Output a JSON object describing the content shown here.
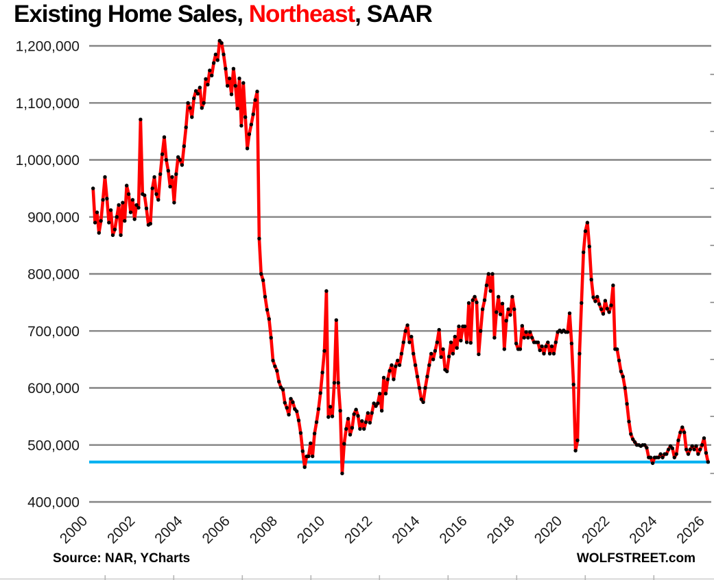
{
  "title": {
    "prefix": "Existing Home Sales, ",
    "highlight": "Northeast",
    "suffix": ", SAAR"
  },
  "footer": {
    "source": "Source: NAR, YCharts",
    "brand": "WOLFSTREET.com"
  },
  "colors": {
    "series_line": "#ff0000",
    "marker": "#000000",
    "reference_line": "#00b0f0",
    "gridline": "#848484",
    "title_highlight": "#ff0000",
    "background": "#ffffff"
  },
  "chart_data": {
    "type": "line",
    "title": "Existing Home Sales, Northeast, SAAR",
    "region": "Northeast",
    "units": "homes, seasonally adjusted annual rate",
    "frequency": "monthly",
    "start": "2000-01",
    "end": "2025-12",
    "grid": "horizontal",
    "legend": "none",
    "ylim": [
      400000,
      1200000
    ],
    "y_tick_values": [
      1200000,
      1100000,
      1000000,
      900000,
      800000,
      700000,
      600000,
      500000,
      400000
    ],
    "y_tick_labels": [
      "1,200,000",
      "1,100,000",
      "1,000,000",
      "900,000",
      "800,000",
      "700,000",
      "600,000",
      "500,000",
      "400,000"
    ],
    "x_tick_years": [
      2000,
      2002,
      2004,
      2006,
      2008,
      2010,
      2012,
      2014,
      2016,
      2018,
      2020,
      2022,
      2024,
      2026
    ],
    "reference_line": {
      "value": 470000,
      "color": "#00b0f0",
      "meaning": "latest reading level"
    },
    "series": [
      {
        "name": "Existing home sales, Northeast, SAAR",
        "color": "#ff0000",
        "marker_color": "#000000",
        "values": [
          950000,
          890000,
          908000,
          872000,
          893000,
          930000,
          970000,
          932000,
          890000,
          912000,
          868000,
          878000,
          900000,
          921000,
          868000,
          925000,
          893000,
          955000,
          940000,
          908000,
          930000,
          896000,
          921000,
          916000,
          1071000,
          940000,
          938000,
          915000,
          886000,
          888000,
          950000,
          970000,
          940000,
          930000,
          975000,
          1010000,
          1040000,
          1000000,
          981000,
          953000,
          970000,
          925000,
          975000,
          1005000,
          1000000,
          991000,
          1024000,
          1057000,
          1100000,
          1091000,
          1075000,
          1108000,
          1121000,
          1116000,
          1127000,
          1091000,
          1100000,
          1142000,
          1132000,
          1157000,
          1148000,
          1170000,
          1185000,
          1175000,
          1209000,
          1205000,
          1185000,
          1160000,
          1130000,
          1143000,
          1115000,
          1160000,
          1130000,
          1090000,
          1143000,
          1060000,
          1135000,
          1075000,
          1020000,
          1045000,
          1062000,
          1080000,
          1105000,
          1120000,
          862000,
          800000,
          789000,
          760000,
          737000,
          721000,
          688000,
          648000,
          638000,
          630000,
          611000,
          601000,
          597000,
          574000,
          565000,
          553000,
          581000,
          575000,
          563000,
          559000,
          543000,
          521000,
          489000,
          461000,
          480000,
          480000,
          503000,
          480000,
          520000,
          540000,
          563000,
          591000,
          627000,
          665000,
          770000,
          549000,
          567000,
          550000,
          609000,
          719000,
          609000,
          560000,
          450000,
          502000,
          528000,
          546000,
          518000,
          530000,
          554000,
          562000,
          551000,
          528000,
          542000,
          528000,
          540000,
          556000,
          539000,
          556000,
          573000,
          568000,
          573000,
          590000,
          560000,
          618000,
          590000,
          615000,
          630000,
          640000,
          615000,
          638000,
          648000,
          640000,
          660000,
          680000,
          700000,
          710000,
          680000,
          690000,
          660000,
          640000,
          620000,
          600000,
          580000,
          575000,
          600000,
          620000,
          640000,
          660000,
          650000,
          665000,
          680000,
          702000,
          654000,
          668000,
          632000,
          629000,
          655000,
          680000,
          660000,
          690000,
          670000,
          708000,
          683000,
          708000,
          708000,
          680000,
          749000,
          679000,
          754000,
          760000,
          750000,
          659000,
          700000,
          738000,
          754000,
          780000,
          800000,
          770000,
          800000,
          688000,
          733000,
          760000,
          729000,
          748000,
          668000,
          718000,
          738000,
          728000,
          760000,
          738000,
          678000,
          668000,
          668000,
          709000,
          688000,
          698000,
          688000,
          698000,
          688000,
          680000,
          680000,
          680000,
          666000,
          673000,
          660000,
          673000,
          680000,
          660000,
          673000,
          660000,
          680000,
          698000,
          701000,
          698000,
          701000,
          698000,
          698000,
          731000,
          678000,
          606000,
          490000,
          508000,
          660000,
          749000,
          838000,
          875000,
          890000,
          848000,
          790000,
          759000,
          752000,
          760000,
          747000,
          738000,
          730000,
          753000,
          739000,
          733000,
          745000,
          780000,
          668000,
          668000,
          648000,
          629000,
          620000,
          600000,
          572000,
          541000,
          519000,
          510000,
          505000,
          500000,
          500000,
          498000,
          500000,
          500000,
          495000,
          478000,
          478000,
          468000,
          478000,
          478000,
          478000,
          484000,
          478000,
          484000,
          484000,
          492000,
          498000,
          494000,
          478000,
          484000,
          508000,
          522000,
          531000,
          522000,
          492000,
          484000,
          492000,
          498000,
          492000,
          498000,
          484000,
          492000,
          500000,
          512000,
          486000,
          470000
        ]
      }
    ]
  }
}
